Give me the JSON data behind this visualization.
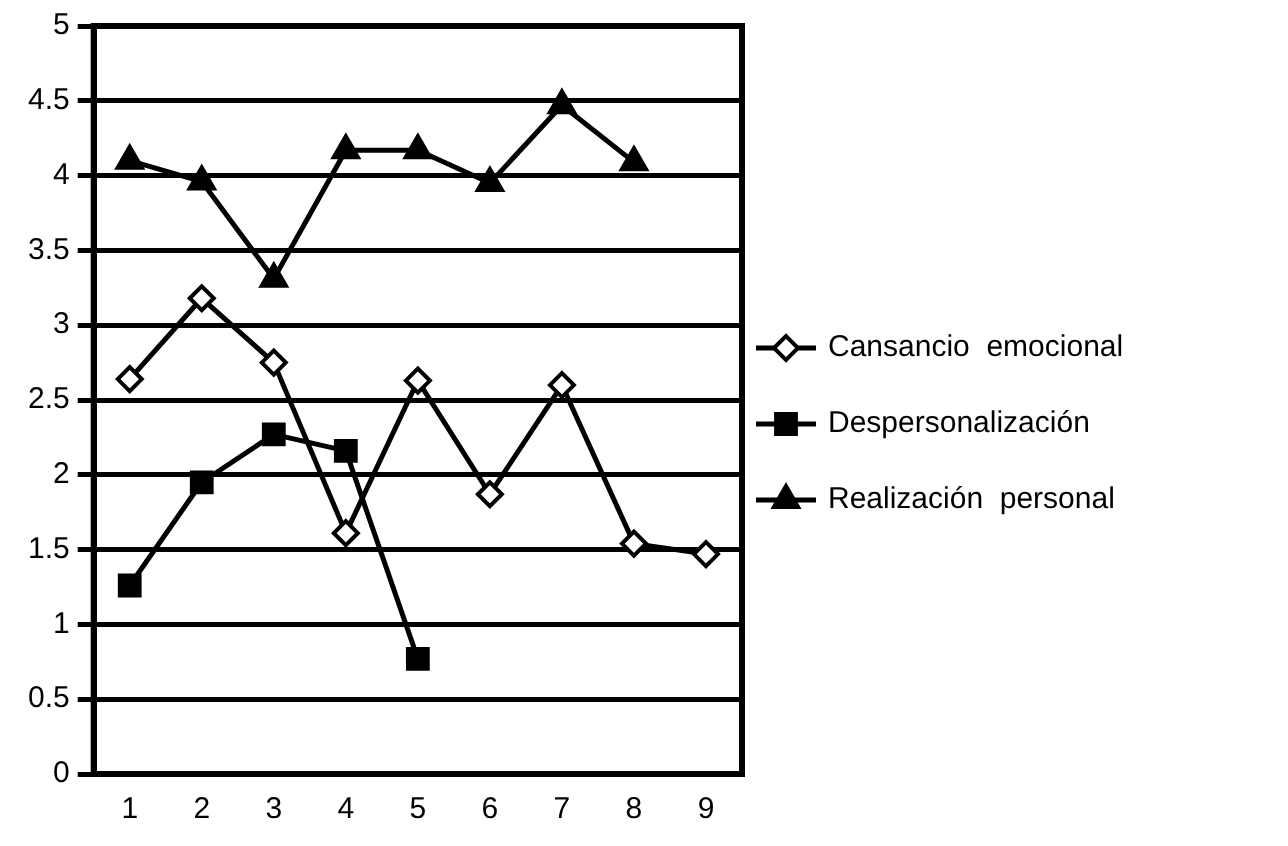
{
  "chart_data": {
    "type": "line",
    "categories": [
      "1",
      "2",
      "3",
      "4",
      "5",
      "6",
      "7",
      "8",
      "9"
    ],
    "series": [
      {
        "name": "Cansancio  emocional",
        "color": "#000000",
        "marker": "diamond",
        "values": [
          2.64,
          3.18,
          2.75,
          1.61,
          2.63,
          1.87,
          2.6,
          1.54,
          1.47
        ]
      },
      {
        "name": "Despersonalización",
        "color": "#000000",
        "marker": "square",
        "values": [
          1.26,
          1.95,
          2.27,
          2.16,
          0.77,
          null,
          null,
          null,
          null
        ]
      },
      {
        "name": "Realización  personal",
        "color": "#000000",
        "marker": "triangle",
        "values": [
          4.1,
          3.96,
          3.31,
          4.17,
          4.17,
          3.95,
          4.47,
          4.09,
          null
        ]
      }
    ],
    "ylim": [
      0,
      5
    ],
    "yticks": [
      0,
      0.5,
      1,
      1.5,
      2,
      2.5,
      3,
      3.5,
      4,
      4.5,
      5
    ],
    "grid": "y",
    "legend": "right"
  }
}
